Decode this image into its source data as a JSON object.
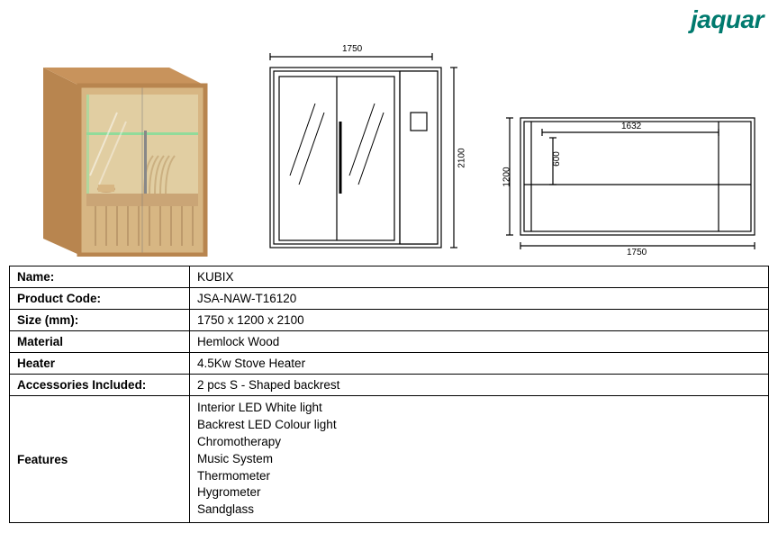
{
  "brand": {
    "name": "jaquar",
    "color": "#007a6e"
  },
  "spec_rows": [
    {
      "label": "Name:",
      "value": "KUBIX"
    },
    {
      "label": "Product Code:",
      "value": "JSA-NAW-T16120"
    },
    {
      "label": "Size (mm):",
      "value": "1750 x 1200 x 2100"
    },
    {
      "label": "Material",
      "value": "Hemlock Wood"
    },
    {
      "label": "Heater",
      "value": "4.5Kw Stove Heater"
    },
    {
      "label": "Accessories Included:",
      "value": " 2 pcs S - Shaped backrest"
    }
  ],
  "features_label": "Features",
  "features": [
    "Interior LED White light",
    "Backrest LED Colour light",
    "Chromotherapy",
    "Music System",
    "Thermometer",
    "Hygrometer",
    "Sandglass"
  ],
  "diagrams": {
    "front": {
      "width_mm": "1750",
      "height_mm": "2100"
    },
    "top": {
      "width_mm": "1750",
      "depth_mm": "1200",
      "inner_w": "1632",
      "inner_d": "600"
    }
  },
  "render": {
    "wood_light": "#d9a86c",
    "wood_dark": "#b8854f",
    "glass": "rgba(200,220,200,0.35)",
    "led_green": "#7fd88a",
    "interior": "#e6c794"
  }
}
